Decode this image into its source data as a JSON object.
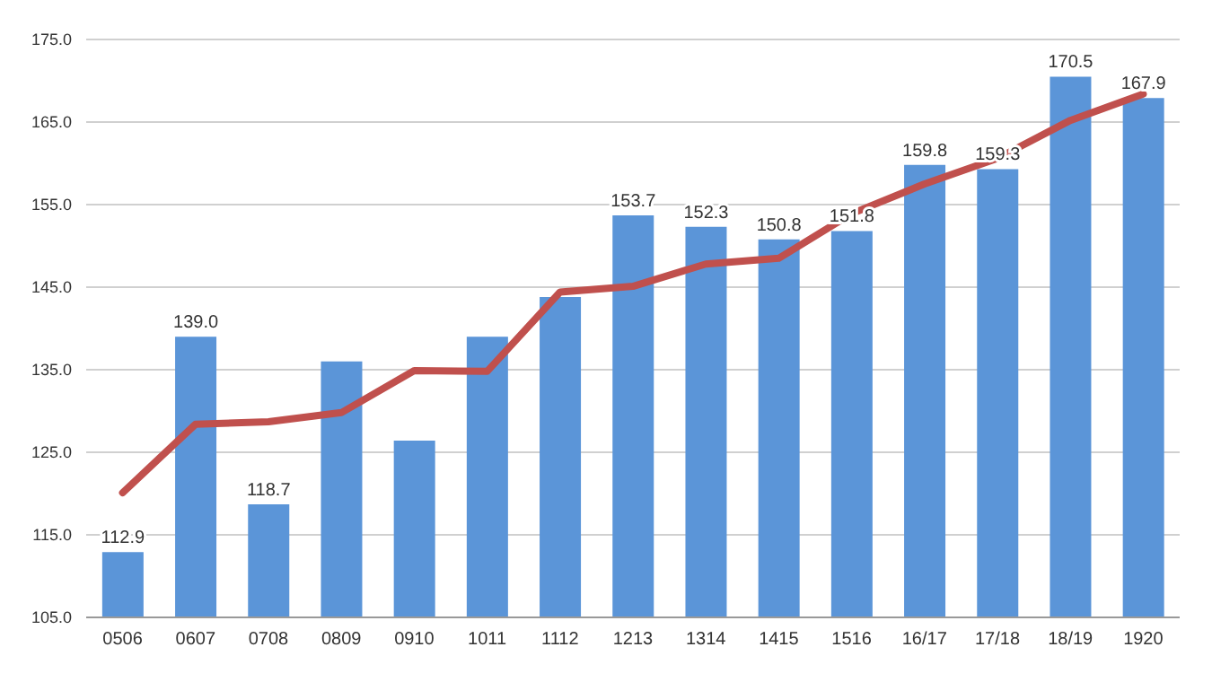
{
  "chart_data": {
    "type": "bar",
    "categories": [
      "0506",
      "0607",
      "0708",
      "0809",
      "0910",
      "1011",
      "1112",
      "1213",
      "1314",
      "1415",
      "1516",
      "16/17",
      "17/18",
      "18/19",
      "1920"
    ],
    "series": [
      {
        "color": "#5b95d8",
        "values": [
          112.9,
          139.0,
          118.7,
          136.0,
          126.4,
          139.0,
          143.8,
          153.7,
          152.3,
          150.8,
          151.8,
          159.8,
          159.3,
          170.5,
          167.9
        ],
        "value_labels": [
          "112.9",
          "139.0",
          "118.7",
          null,
          null,
          null,
          null,
          "153.7",
          "152.3",
          "150.8",
          "151.8",
          "159.8",
          "159.3",
          "170.5",
          "167.9"
        ]
      },
      {
        "type": "line",
        "color": "#c0504d",
        "values": [
          120.1,
          128.4,
          128.7,
          129.8,
          134.9,
          134.8,
          144.4,
          145.1,
          147.8,
          148.5,
          153.9,
          157.5,
          160.6,
          165.2,
          168.4
        ]
      }
    ],
    "ylim": [
      105,
      175
    ],
    "yticks": [
      {
        "value": 105,
        "label": "105.0"
      },
      {
        "value": 115,
        "label": "115.0"
      },
      {
        "value": 125,
        "label": "125.0"
      },
      {
        "value": 135,
        "label": "135.0"
      },
      {
        "value": 145,
        "label": "145.0"
      },
      {
        "value": 155,
        "label": "155.0"
      },
      {
        "value": 165,
        "label": "165.0"
      },
      {
        "value": 175,
        "label": "175.0"
      }
    ],
    "grid": "y",
    "marker": "none",
    "line_style": "solid",
    "legend": false
  }
}
